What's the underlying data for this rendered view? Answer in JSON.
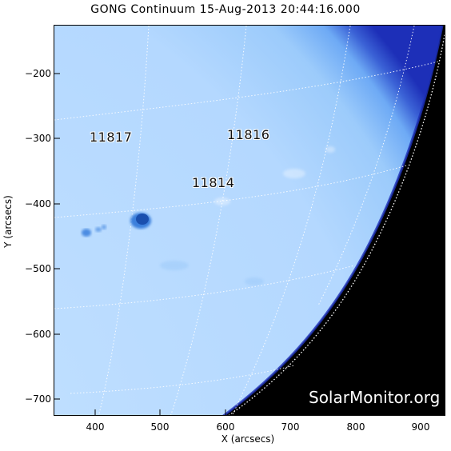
{
  "title": "GONG Continuum 15-Aug-2013 20:44:16.000",
  "axes": {
    "xlabel": "X (arcsecs)",
    "ylabel": "Y (arcsecs)",
    "xticks": [
      "400",
      "500",
      "600",
      "700",
      "800",
      "900"
    ],
    "yticks": [
      "−200",
      "−300",
      "−400",
      "−500",
      "−600",
      "−700"
    ]
  },
  "regions": [
    {
      "label": "11817"
    },
    {
      "label": "11816"
    },
    {
      "label": "11814"
    }
  ],
  "watermark": "SolarMonitor.org",
  "colors": {
    "disk_light": "#b9dcff",
    "disk_mid": "#9ccbfb",
    "limb": "#1d2fb8",
    "space": "#000000",
    "sunspot": "#1a56b8"
  }
}
